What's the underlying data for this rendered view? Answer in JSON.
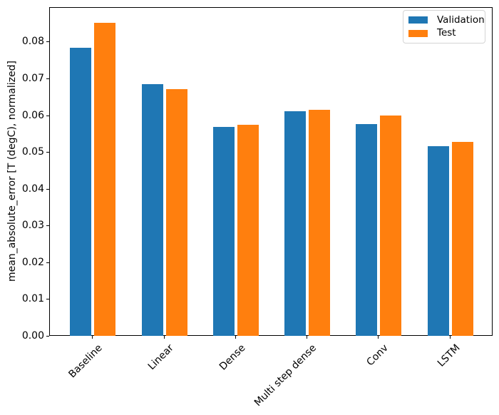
{
  "chart_data": {
    "type": "bar",
    "title": "",
    "xlabel": "",
    "ylabel": "mean_absolute_error [T (degC), normalized]",
    "categories": [
      "Baseline",
      "Linear",
      "Dense",
      "Multi step dense",
      "Conv",
      "LSTM"
    ],
    "series": [
      {
        "name": "Validation",
        "color": "#1f77b4",
        "offset": -0.17,
        "values": [
          0.0785,
          0.0687,
          0.057,
          0.0612,
          0.0578,
          0.0518
        ]
      },
      {
        "name": "Test",
        "color": "#ff7f0e",
        "offset": 0.17,
        "values": [
          0.0853,
          0.0672,
          0.0576,
          0.0617,
          0.0601,
          0.0529
        ]
      }
    ],
    "bar_width": 0.3,
    "ylim": [
      0,
      0.0894
    ],
    "xlim": [
      -0.602,
      5.602
    ],
    "yticks": [
      0,
      0.01,
      0.02,
      0.03,
      0.04,
      0.05,
      0.06,
      0.07,
      0.08
    ],
    "ytick_labels": [
      "0.00",
      "0.01",
      "0.02",
      "0.03",
      "0.04",
      "0.05",
      "0.06",
      "0.07",
      "0.08"
    ],
    "xtick_rotation": 45,
    "grid": false,
    "legend": {
      "location": "upper right",
      "entries": [
        "Validation",
        "Test"
      ]
    },
    "axis_color": "#000000",
    "background_color": "#ffffff"
  }
}
